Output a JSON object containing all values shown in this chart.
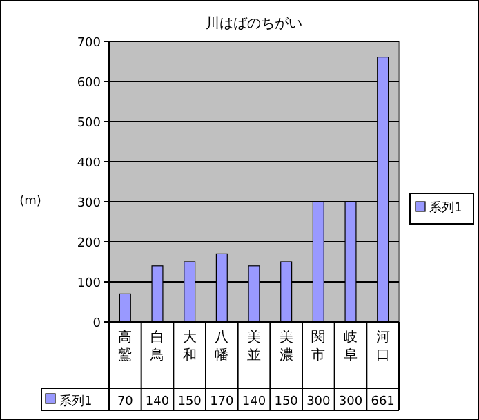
{
  "chart_data": {
    "type": "bar",
    "title": "川はばのちがい",
    "ylabel": "(m)",
    "categories": [
      "高鷲",
      "白鳥",
      "大和",
      "八幡",
      "美並",
      "美濃",
      "関市",
      "岐阜",
      "河口"
    ],
    "series": [
      {
        "name": "系列1",
        "color": "#9999ff",
        "values": [
          70,
          140,
          150,
          170,
          140,
          150,
          300,
          300,
          661
        ]
      }
    ],
    "ylim": [
      0,
      700
    ],
    "yticks": [
      0,
      100,
      200,
      300,
      400,
      500,
      600,
      700
    ],
    "grid": "y",
    "legend": "right",
    "data_labels": true
  }
}
